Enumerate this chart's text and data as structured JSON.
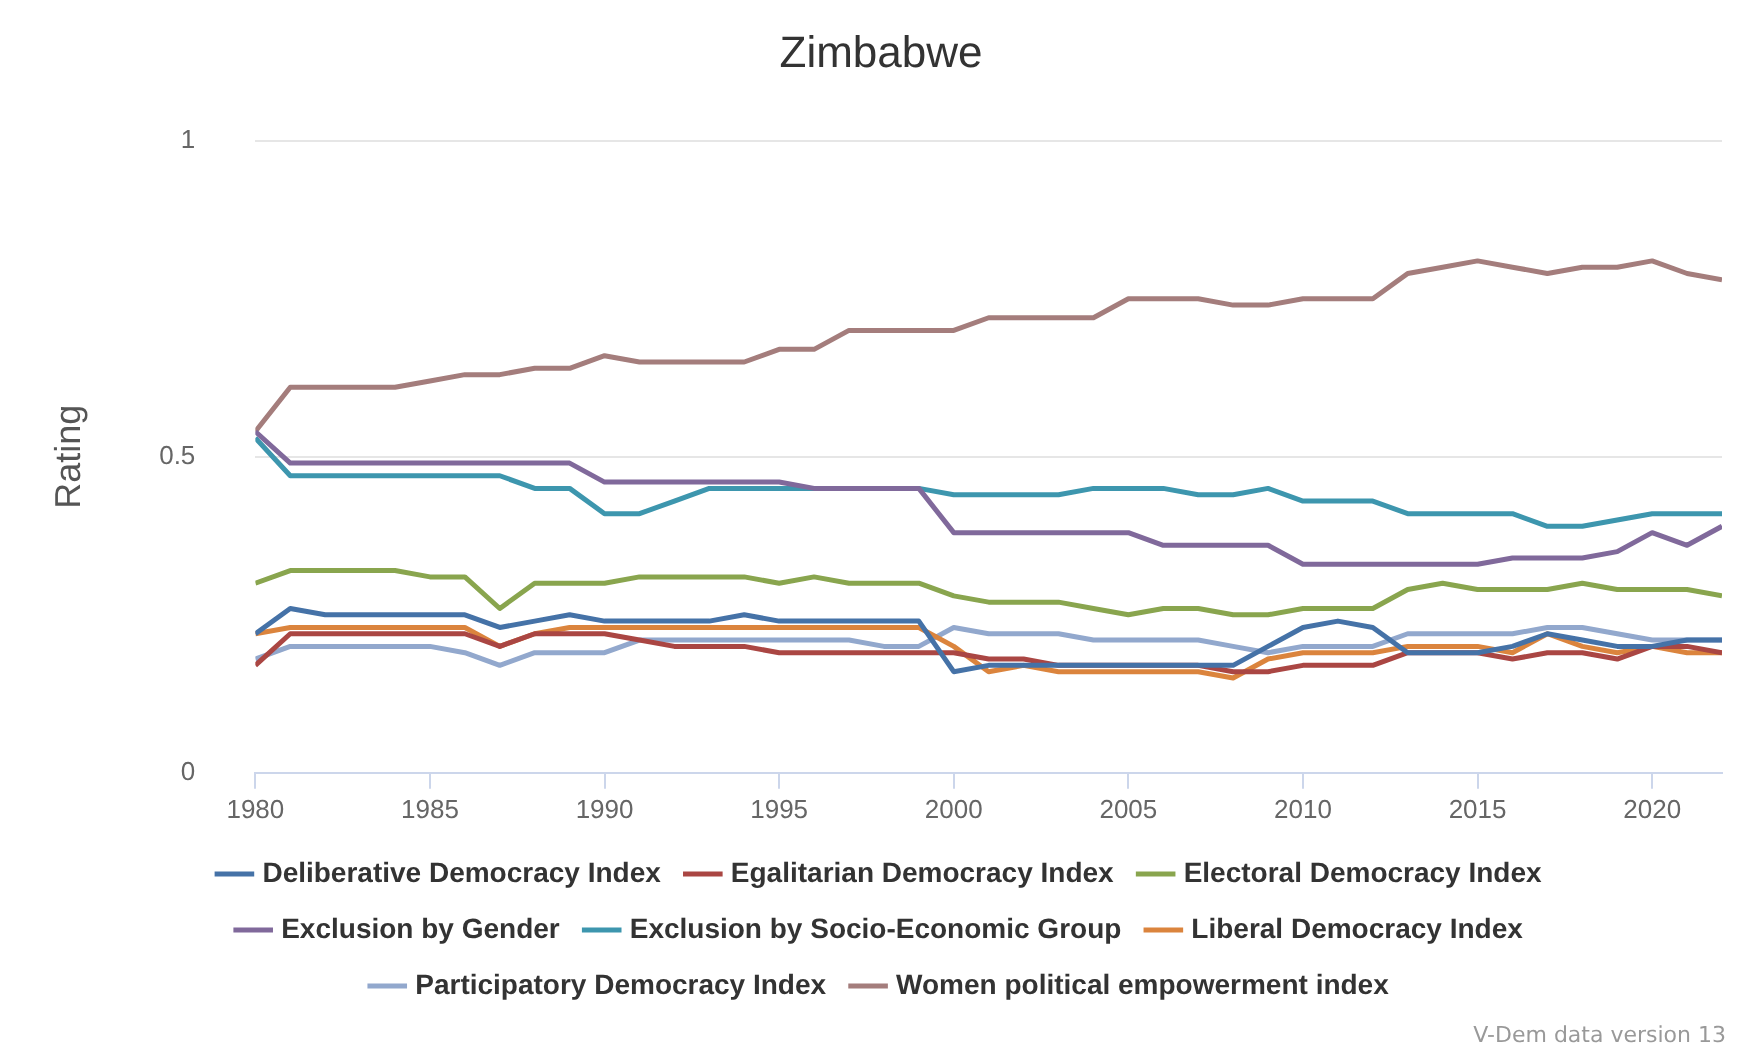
{
  "chart_data": {
    "type": "line",
    "title": "Zimbabwe",
    "ylabel": "Rating",
    "x": [
      1980,
      1981,
      1982,
      1983,
      1984,
      1985,
      1986,
      1987,
      1988,
      1989,
      1990,
      1991,
      1992,
      1993,
      1994,
      1995,
      1996,
      1997,
      1998,
      1999,
      2000,
      2001,
      2002,
      2003,
      2004,
      2005,
      2006,
      2007,
      2008,
      2009,
      2010,
      2011,
      2012,
      2013,
      2014,
      2015,
      2016,
      2017,
      2018,
      2019,
      2020,
      2021,
      2022
    ],
    "xlim": [
      1980,
      2022
    ],
    "xticks": [
      1980,
      1985,
      1990,
      1995,
      2000,
      2005,
      2010,
      2015,
      2020
    ],
    "ylim": [
      0,
      1
    ],
    "yticks": [
      0,
      0.5,
      1
    ],
    "grid": "y",
    "legend": "bottom",
    "marker": "none",
    "line_style": "solid",
    "series": [
      {
        "name": "Deliberative Democracy Index",
        "color": "#4572a7",
        "values": [
          0.22,
          0.26,
          0.25,
          0.25,
          0.25,
          0.25,
          0.25,
          0.23,
          0.24,
          0.25,
          0.24,
          0.24,
          0.24,
          0.24,
          0.25,
          0.24,
          0.24,
          0.24,
          0.24,
          0.24,
          0.16,
          0.17,
          0.17,
          0.17,
          0.17,
          0.17,
          0.17,
          0.17,
          0.17,
          0.2,
          0.23,
          0.24,
          0.23,
          0.19,
          0.19,
          0.19,
          0.2,
          0.22,
          0.21,
          0.2,
          0.2,
          0.21,
          0.21
        ]
      },
      {
        "name": "Egalitarian Democracy Index",
        "color": "#aa4643",
        "values": [
          0.17,
          0.22,
          0.22,
          0.22,
          0.22,
          0.22,
          0.22,
          0.2,
          0.22,
          0.22,
          0.22,
          0.21,
          0.2,
          0.2,
          0.2,
          0.19,
          0.19,
          0.19,
          0.19,
          0.19,
          0.19,
          0.18,
          0.18,
          0.17,
          0.17,
          0.17,
          0.17,
          0.17,
          0.16,
          0.16,
          0.17,
          0.17,
          0.17,
          0.19,
          0.19,
          0.19,
          0.18,
          0.19,
          0.19,
          0.18,
          0.2,
          0.2,
          0.19
        ]
      },
      {
        "name": "Electoral Democracy Index",
        "color": "#89a54e",
        "values": [
          0.3,
          0.32,
          0.32,
          0.32,
          0.32,
          0.31,
          0.31,
          0.26,
          0.3,
          0.3,
          0.3,
          0.31,
          0.31,
          0.31,
          0.31,
          0.3,
          0.31,
          0.3,
          0.3,
          0.3,
          0.28,
          0.27,
          0.27,
          0.27,
          0.26,
          0.25,
          0.26,
          0.26,
          0.25,
          0.25,
          0.26,
          0.26,
          0.26,
          0.29,
          0.3,
          0.29,
          0.29,
          0.29,
          0.3,
          0.29,
          0.29,
          0.29,
          0.28
        ]
      },
      {
        "name": "Exclusion by Gender",
        "color": "#80699b",
        "values": [
          0.54,
          0.49,
          0.49,
          0.49,
          0.49,
          0.49,
          0.49,
          0.49,
          0.49,
          0.49,
          0.46,
          0.46,
          0.46,
          0.46,
          0.46,
          0.46,
          0.45,
          0.45,
          0.45,
          0.45,
          0.38,
          0.38,
          0.38,
          0.38,
          0.38,
          0.38,
          0.36,
          0.36,
          0.36,
          0.36,
          0.33,
          0.33,
          0.33,
          0.33,
          0.33,
          0.33,
          0.34,
          0.34,
          0.34,
          0.35,
          0.38,
          0.36,
          0.39
        ]
      },
      {
        "name": "Exclusion by Socio-Economic Group",
        "color": "#3d96ae",
        "values": [
          0.53,
          0.47,
          0.47,
          0.47,
          0.47,
          0.47,
          0.47,
          0.47,
          0.45,
          0.45,
          0.41,
          0.41,
          0.43,
          0.45,
          0.45,
          0.45,
          0.45,
          0.45,
          0.45,
          0.45,
          0.44,
          0.44,
          0.44,
          0.44,
          0.45,
          0.45,
          0.45,
          0.44,
          0.44,
          0.45,
          0.43,
          0.43,
          0.43,
          0.41,
          0.41,
          0.41,
          0.41,
          0.39,
          0.39,
          0.4,
          0.41,
          0.41,
          0.41
        ]
      },
      {
        "name": "Liberal Democracy Index",
        "color": "#db843d",
        "values": [
          0.22,
          0.23,
          0.23,
          0.23,
          0.23,
          0.23,
          0.23,
          0.2,
          0.22,
          0.23,
          0.23,
          0.23,
          0.23,
          0.23,
          0.23,
          0.23,
          0.23,
          0.23,
          0.23,
          0.23,
          0.2,
          0.16,
          0.17,
          0.16,
          0.16,
          0.16,
          0.16,
          0.16,
          0.15,
          0.18,
          0.19,
          0.19,
          0.19,
          0.2,
          0.2,
          0.2,
          0.19,
          0.22,
          0.2,
          0.19,
          0.2,
          0.19,
          0.19
        ]
      },
      {
        "name": "Participatory Democracy Index",
        "color": "#92a8cd",
        "values": [
          0.18,
          0.2,
          0.2,
          0.2,
          0.2,
          0.2,
          0.19,
          0.17,
          0.19,
          0.19,
          0.19,
          0.21,
          0.21,
          0.21,
          0.21,
          0.21,
          0.21,
          0.21,
          0.2,
          0.2,
          0.23,
          0.22,
          0.22,
          0.22,
          0.21,
          0.21,
          0.21,
          0.21,
          0.2,
          0.19,
          0.2,
          0.2,
          0.2,
          0.22,
          0.22,
          0.22,
          0.22,
          0.23,
          0.23,
          0.22,
          0.21,
          0.21,
          0.21
        ]
      },
      {
        "name": "Women political empowerment index",
        "color": "#a47d7c",
        "values": [
          0.54,
          0.61,
          0.61,
          0.61,
          0.61,
          0.62,
          0.63,
          0.63,
          0.64,
          0.64,
          0.66,
          0.65,
          0.65,
          0.65,
          0.65,
          0.67,
          0.67,
          0.7,
          0.7,
          0.7,
          0.7,
          0.72,
          0.72,
          0.72,
          0.72,
          0.75,
          0.75,
          0.75,
          0.74,
          0.74,
          0.75,
          0.75,
          0.75,
          0.79,
          0.8,
          0.81,
          0.8,
          0.79,
          0.8,
          0.8,
          0.81,
          0.79,
          0.78
        ]
      }
    ],
    "annotations": [
      "V-Dem data version 13"
    ]
  }
}
